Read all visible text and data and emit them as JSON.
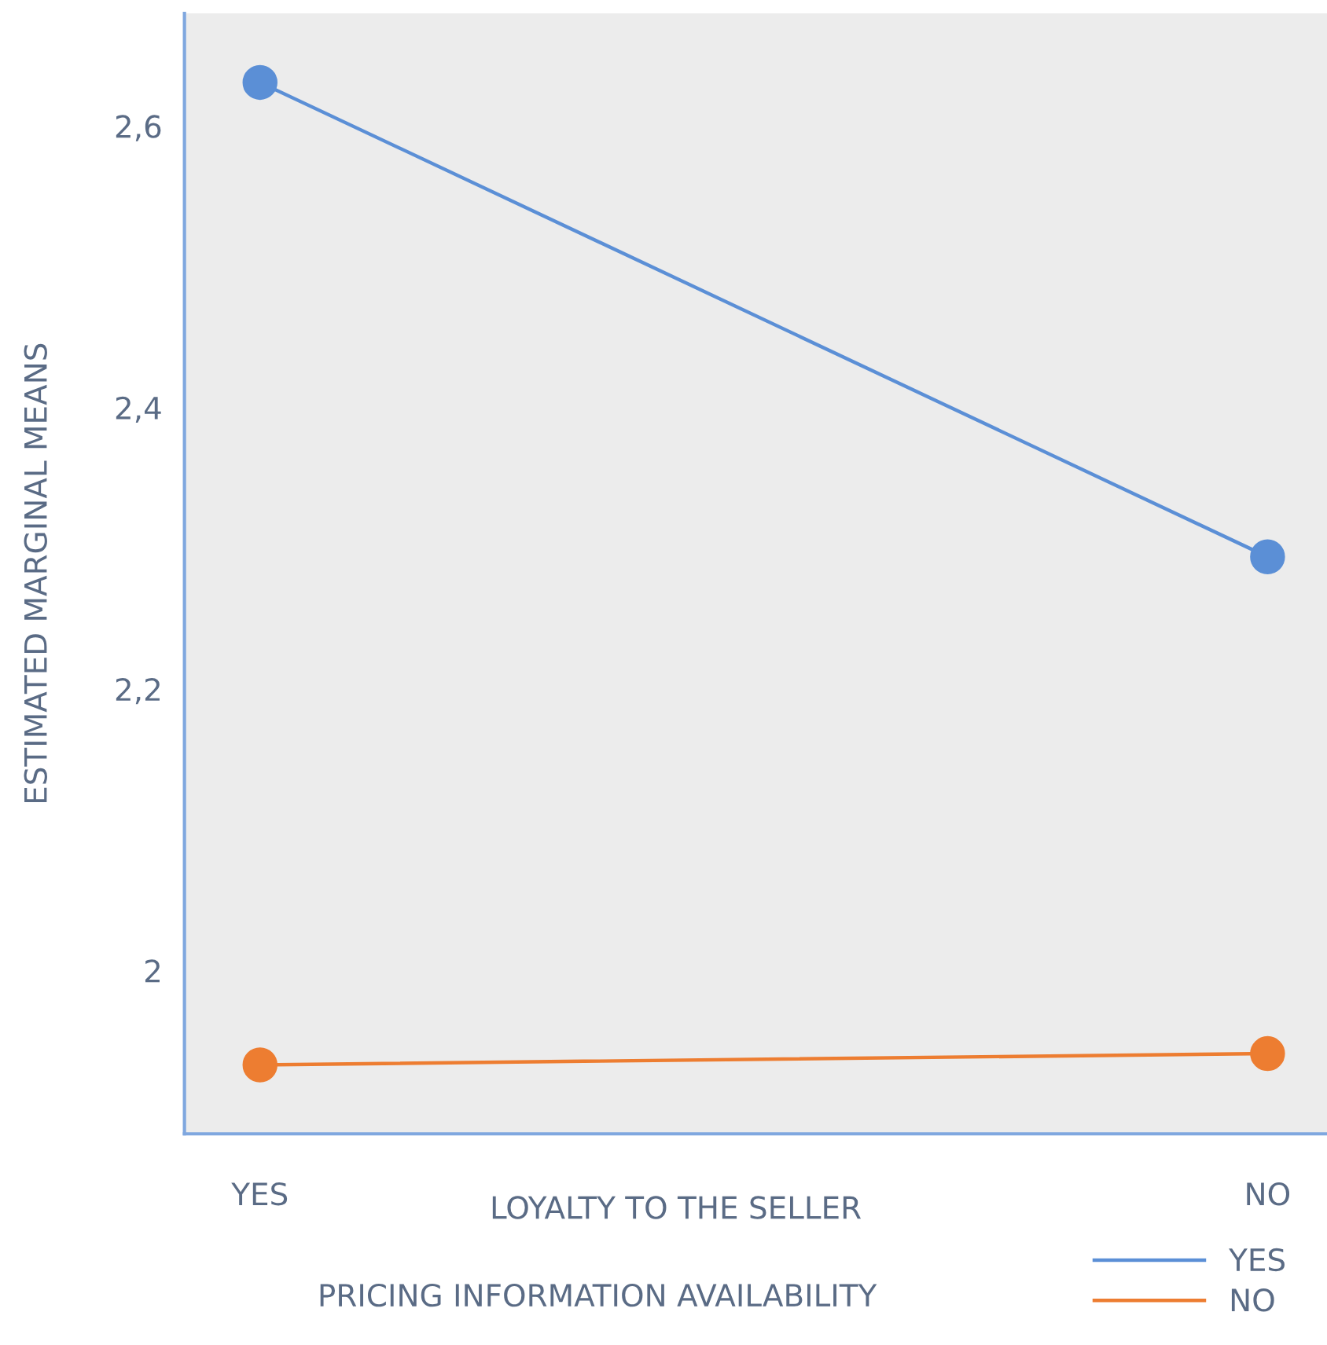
{
  "chart_data": {
    "type": "line",
    "xlabel": "LOYALTY TO THE SELLER",
    "ylabel": "ESTIMATED MARGINAL MEANS",
    "legend_title": "PRICING INFORMATION AVAILABILITY",
    "categories": [
      "YES",
      "NO"
    ],
    "series": [
      {
        "name": "YES",
        "color": "#5b8fd6",
        "values": [
          2.631,
          2.294
        ]
      },
      {
        "name": "NO",
        "color": "#ed7d31",
        "values": [
          1.933,
          1.941
        ]
      }
    ],
    "ylim": [
      1.884,
      2.68
    ],
    "yticks": [
      {
        "value": 2,
        "label": "2"
      },
      {
        "value": 2.2,
        "label": "2,2"
      },
      {
        "value": 2.4,
        "label": "2,4"
      },
      {
        "value": 2.6,
        "label": "2,6"
      }
    ],
    "marker": "circle",
    "line_style": "solid",
    "grid": false,
    "legend": "bottom right"
  }
}
